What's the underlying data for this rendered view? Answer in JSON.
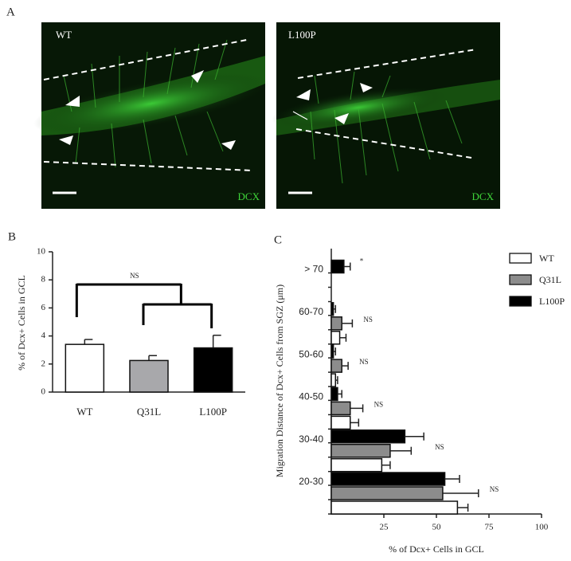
{
  "figure": {
    "panel_labels": [
      "A",
      "B",
      "C"
    ],
    "images": [
      {
        "label": "WT",
        "stain": "DCX"
      },
      {
        "label": "L100P",
        "stain": "DCX"
      }
    ]
  },
  "chart_data": [
    {
      "type": "bar",
      "ylabel": "% of Dcx+ Cells in GCL",
      "categories": [
        "WT",
        "Q31L",
        "L100P"
      ],
      "values": [
        3.4,
        2.25,
        3.15
      ],
      "errors": [
        0.35,
        0.35,
        0.9
      ],
      "colors": [
        "#ffffff",
        "#a8a8ab",
        "#000000"
      ],
      "annotation": "NS",
      "ylim": [
        0,
        10
      ],
      "yticks": [
        0,
        2,
        4,
        6,
        8,
        10
      ]
    },
    {
      "type": "hbar",
      "xlabel": "% of Dcx+ Cells in GCL",
      "ylabel": "Migration Distance of Dcx+ Cells from SGZ (μm)",
      "categories": [
        "20-30",
        "30-40",
        "40-50",
        "50-60",
        "60-70",
        "> 70"
      ],
      "series": [
        {
          "name": "WT",
          "color": "#ffffff",
          "values": [
            60,
            24,
            9,
            2,
            4,
            0
          ],
          "errors": [
            5,
            4,
            4,
            1,
            3,
            0
          ]
        },
        {
          "name": "Q31L",
          "color": "#8c8c8c",
          "values": [
            53,
            28,
            9,
            5,
            5,
            0
          ],
          "errors": [
            17,
            10,
            6,
            3,
            5,
            0
          ]
        },
        {
          "name": "L100P",
          "color": "#000000",
          "values": [
            54,
            35,
            3,
            1,
            1,
            6
          ],
          "errors": [
            7,
            9,
            2,
            1,
            1,
            3
          ]
        }
      ],
      "annotations": [
        "NS",
        "NS",
        "NS",
        "NS",
        "NS",
        "*"
      ],
      "xlim": [
        0,
        100
      ],
      "xticks": [
        25,
        50,
        75,
        100
      ],
      "legend": "upper right"
    }
  ]
}
